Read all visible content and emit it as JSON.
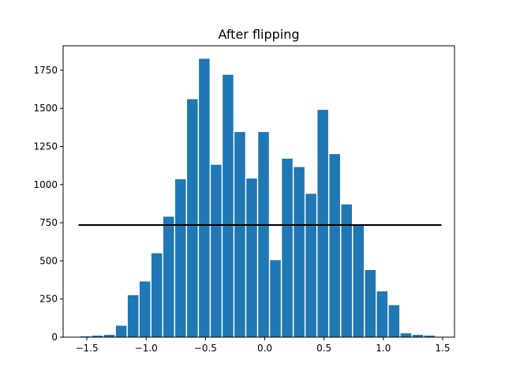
{
  "chart_data": {
    "type": "bar",
    "title": "After flipping",
    "xlabel": "",
    "ylabel": "",
    "xlim": [
      -1.7,
      1.6
    ],
    "ylim": [
      0,
      1910
    ],
    "x_ticks": [
      -1.5,
      -1.0,
      -0.5,
      0.0,
      0.5,
      1.0,
      1.5
    ],
    "x_tick_labels": [
      "−1.5",
      "−1.0",
      "−0.5",
      "0.0",
      "0.5",
      "1.0",
      "1.5"
    ],
    "y_ticks": [
      0,
      250,
      500,
      750,
      1000,
      1250,
      1500,
      1750
    ],
    "y_tick_labels": [
      "0",
      "250",
      "500",
      "750",
      "1000",
      "1250",
      "1500",
      "1750"
    ],
    "bar_color": "#1f77b4",
    "bin_width": 0.1,
    "bin_centers": [
      -1.51,
      -1.41,
      -1.31,
      -1.21,
      -1.11,
      -1.01,
      -0.91,
      -0.81,
      -0.71,
      -0.61,
      -0.51,
      -0.41,
      -0.31,
      -0.21,
      -0.11,
      -0.01,
      0.09,
      0.19,
      0.29,
      0.39,
      0.49,
      0.59,
      0.69,
      0.79,
      0.89,
      0.99,
      1.09,
      1.19,
      1.29,
      1.39,
      1.49
    ],
    "values": [
      5,
      10,
      15,
      75,
      275,
      365,
      550,
      790,
      1035,
      1560,
      1825,
      1130,
      1720,
      1345,
      1040,
      1345,
      505,
      1170,
      1115,
      940,
      1490,
      1200,
      870,
      735,
      440,
      300,
      210,
      25,
      15,
      10,
      0
    ],
    "reference_line": {
      "y": 735,
      "x_start": -1.57,
      "x_end": 1.49,
      "color": "#000000"
    },
    "grid": false
  }
}
